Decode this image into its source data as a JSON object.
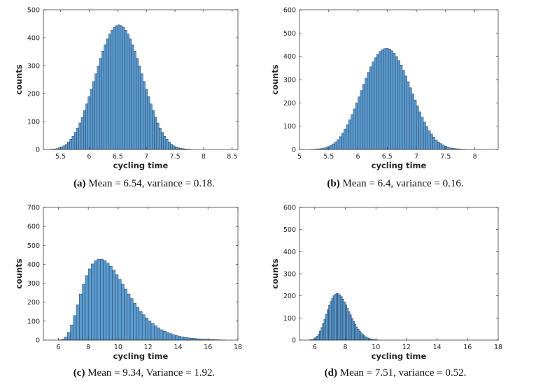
{
  "chart_data": [
    {
      "id": "a",
      "type": "bar",
      "caption_label": "(a)",
      "caption_text": "Mean = 6.54, variance = 0.18.",
      "xlabel": "cycling time",
      "ylabel": "counts",
      "xlim": [
        5.2,
        8.6
      ],
      "ylim": [
        0,
        500
      ],
      "xticks": [
        5.5,
        6,
        6.5,
        7,
        7.5,
        8,
        8.5
      ],
      "xtick_labels": [
        "5.5",
        "6",
        "6.5",
        "7",
        "7.5",
        "8",
        "8.5"
      ],
      "yticks": [
        0,
        100,
        200,
        300,
        400,
        500
      ],
      "ytick_labels": [
        "0",
        "100",
        "200",
        "300",
        "400",
        "500"
      ],
      "bin_start": 5.3,
      "bin_width": 0.04,
      "counts": [
        1,
        1,
        2,
        3,
        6,
        9,
        13,
        18,
        27,
        37,
        47,
        61,
        77,
        95,
        115,
        139,
        163,
        189,
        216,
        243,
        271,
        299,
        326,
        352,
        375,
        396,
        413,
        427,
        437,
        443,
        446,
        443,
        437,
        427,
        413,
        396,
        375,
        352,
        326,
        299,
        271,
        243,
        216,
        189,
        163,
        139,
        115,
        95,
        77,
        61,
        47,
        37,
        27,
        18,
        13,
        9,
        6,
        4,
        3,
        2,
        1,
        1
      ]
    },
    {
      "id": "b",
      "type": "bar",
      "caption_label": "(b)",
      "caption_text": "Mean = 6.4, variance = 0.16.",
      "xlabel": "cycling time",
      "ylabel": "counts",
      "xlim": [
        5.0,
        8.4
      ],
      "ylim": [
        0,
        600
      ],
      "xticks": [
        5,
        5.5,
        6,
        6.5,
        7,
        7.5,
        8
      ],
      "xtick_labels": [
        "5",
        "5.5",
        "6",
        "6.5",
        "7",
        "7.5",
        "8"
      ],
      "yticks": [
        0,
        100,
        200,
        300,
        400,
        500,
        600
      ],
      "ytick_labels": [
        "0",
        "100",
        "200",
        "300",
        "400",
        "500",
        "600"
      ],
      "bin_start": 5.2,
      "bin_width": 0.04,
      "counts": [
        1,
        1,
        2,
        3,
        4,
        6,
        9,
        13,
        18,
        24,
        32,
        42,
        55,
        70,
        87,
        106,
        127,
        150,
        174,
        200,
        226,
        253,
        280,
        306,
        331,
        355,
        376,
        394,
        409,
        421,
        429,
        433,
        434,
        431,
        424,
        413,
        399,
        382,
        362,
        340,
        316,
        291,
        265,
        239,
        212,
        187,
        162,
        139,
        118,
        98,
        81,
        66,
        53,
        41,
        32,
        25,
        19,
        14,
        10,
        7,
        5,
        4,
        3,
        2,
        1,
        1
      ]
    },
    {
      "id": "c",
      "type": "bar",
      "caption_label": "(c)",
      "caption_text": "Mean = 9.34, Variance = 1.92.",
      "xlabel": "cycling time",
      "ylabel": "counts",
      "xlim": [
        5.0,
        18.0
      ],
      "ylim": [
        0,
        700
      ],
      "xticks": [
        6,
        8,
        10,
        12,
        14,
        16,
        18
      ],
      "xtick_labels": [
        "6",
        "8",
        "10",
        "12",
        "14",
        "16",
        "18"
      ],
      "yticks": [
        0,
        100,
        200,
        300,
        400,
        500,
        600,
        700
      ],
      "ytick_labels": [
        "0",
        "100",
        "200",
        "300",
        "400",
        "500",
        "600",
        "700"
      ],
      "bin_start": 6.0,
      "bin_width": 0.2,
      "counts": [
        1,
        4,
        16,
        40,
        80,
        130,
        186,
        243,
        295,
        340,
        376,
        402,
        419,
        427,
        427,
        420,
        407,
        390,
        369,
        346,
        321,
        295,
        269,
        243,
        219,
        195,
        173,
        152,
        134,
        117,
        101,
        87,
        75,
        64,
        55,
        47,
        40,
        34,
        29,
        24,
        20,
        17,
        14,
        12,
        10,
        9,
        7,
        6,
        5,
        4,
        3,
        3,
        2,
        2,
        1,
        1
      ]
    },
    {
      "id": "d",
      "type": "bar",
      "caption_label": "(d)",
      "caption_text": "Mean = 7.51, variance = 0.52.",
      "xlabel": "cycling time",
      "ylabel": "counts",
      "xlim": [
        5.0,
        18.0
      ],
      "ylim": [
        0,
        600
      ],
      "xticks": [
        6,
        8,
        10,
        12,
        14,
        16,
        18
      ],
      "xtick_labels": [
        "6",
        "8",
        "10",
        "12",
        "14",
        "16",
        "18"
      ],
      "yticks": [
        0,
        100,
        200,
        300,
        400,
        500,
        600
      ],
      "ytick_labels": [
        "0",
        "100",
        "200",
        "300",
        "400",
        "500",
        "600"
      ],
      "bin_start": 5.6,
      "bin_width": 0.1,
      "counts": [
        1,
        2,
        3,
        6,
        11,
        18,
        28,
        41,
        57,
        75,
        95,
        116,
        137,
        157,
        175,
        190,
        201,
        208,
        211,
        210,
        205,
        197,
        186,
        173,
        159,
        144,
        129,
        114,
        99,
        85,
        72,
        60,
        50,
        41,
        33,
        26,
        20,
        15,
        11,
        8,
        6,
        4,
        3,
        2,
        1,
        1
      ]
    }
  ]
}
